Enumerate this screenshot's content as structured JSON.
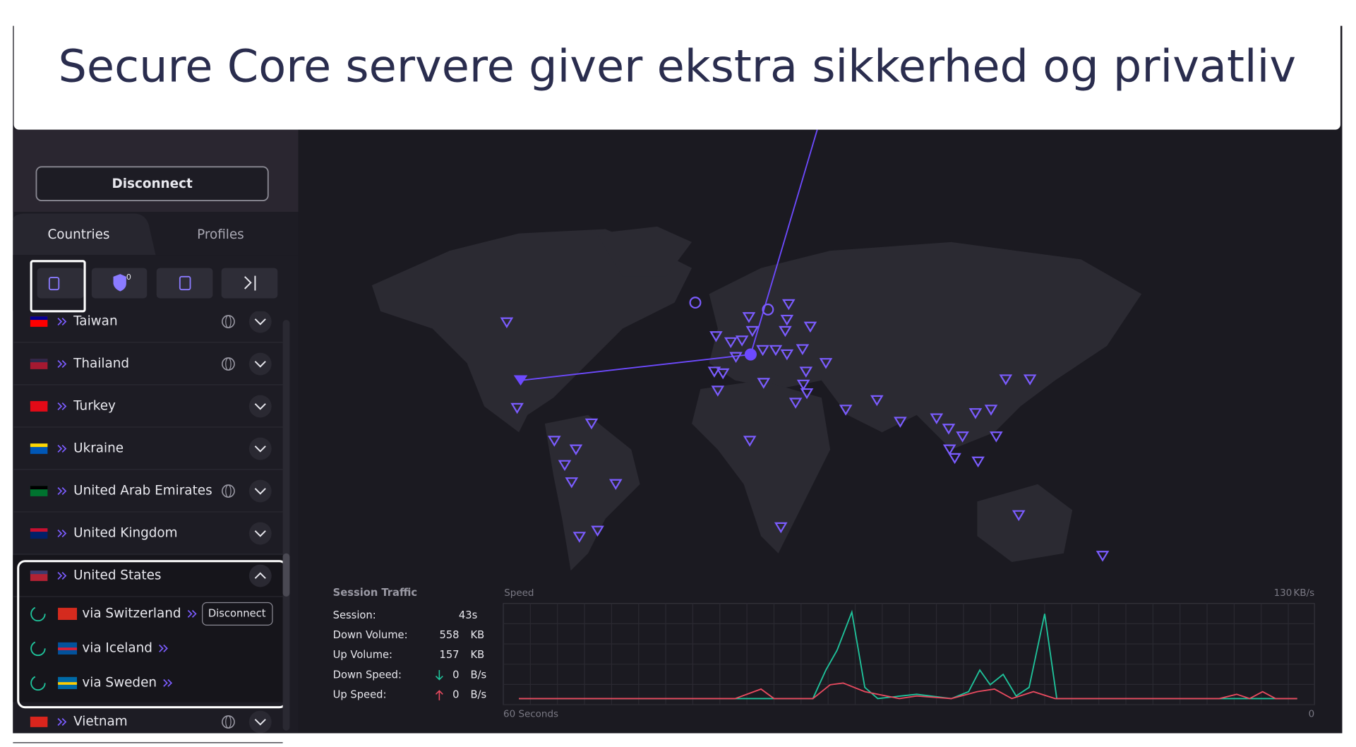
{
  "header": {
    "title": "Secure Core servere giver ekstra sikkerhed og privatliv"
  },
  "sidebar": {
    "disconnect": "Disconnect",
    "tabs": [
      "Countries",
      "Profiles"
    ],
    "shield_count": 0,
    "countries": [
      {
        "name": "Taiwan",
        "globe": true
      },
      {
        "name": "Thailand",
        "globe": true
      },
      {
        "name": "Turkey",
        "globe": false
      },
      {
        "name": "Ukraine",
        "globe": false
      },
      {
        "name": "United Arab Emirates",
        "globe": true
      },
      {
        "name": "United Kingdom",
        "globe": false
      },
      {
        "name": "United States",
        "globe": false,
        "expanded": true,
        "via": [
          {
            "name": "via Switzerland",
            "action": "Disconnect"
          },
          {
            "name": "via Iceland"
          },
          {
            "name": "via Sweden"
          }
        ]
      },
      {
        "name": "Vietnam",
        "globe": true
      }
    ]
  },
  "session_traffic": {
    "title": "Session Traffic",
    "rows": [
      {
        "label": "Session:",
        "value": "43s"
      },
      {
        "label": "Down Volume:",
        "value": 558,
        "unit": "KB"
      },
      {
        "label": "Up Volume:",
        "value": 157,
        "unit": "KB"
      },
      {
        "label": "Down Speed:",
        "value": 0,
        "unit": "B/s"
      },
      {
        "label": "Up Speed:",
        "value": 0,
        "unit": "B/s"
      }
    ]
  },
  "speed_graph": {
    "label": "Speed",
    "max": 130,
    "max_unit": "KB/s",
    "x_start": "60 Seconds",
    "x_end": 0
  }
}
